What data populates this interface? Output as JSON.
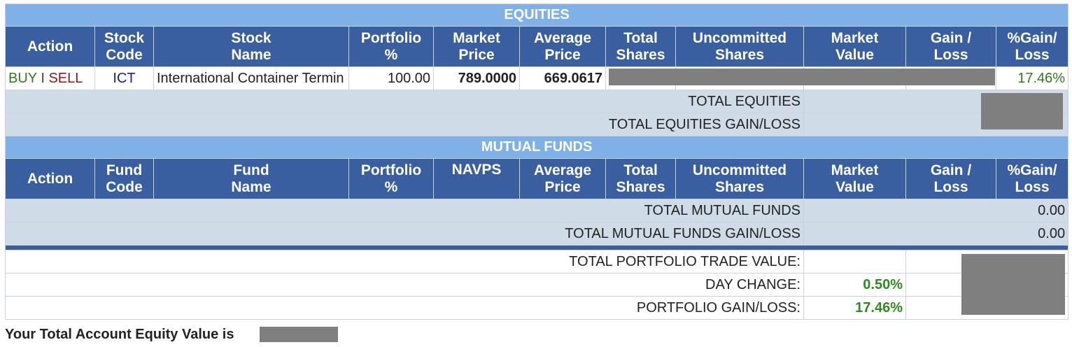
{
  "equities": {
    "section_title": "EQUITIES",
    "columns": [
      [
        "Action"
      ],
      [
        "Stock",
        "Code"
      ],
      [
        "Stock",
        "Name"
      ],
      [
        "Portfolio",
        "%"
      ],
      [
        "Market",
        "Price"
      ],
      [
        "Average",
        "Price"
      ],
      [
        "Total",
        "Shares"
      ],
      [
        "Uncommitted",
        "Shares"
      ],
      [
        "Market",
        "Value"
      ],
      [
        "Gain /",
        "Loss"
      ],
      [
        "%Gain/",
        "Loss"
      ]
    ],
    "row": {
      "buy": "BUY",
      "sep": "I",
      "sell": "SELL",
      "code": "ICT",
      "name": "International Container Termin",
      "portfolio_pct": "100.00",
      "market_price": "789.0000",
      "average_price": "669.0617",
      "pct_gain_loss": "17.46%"
    },
    "total_label": "TOTAL EQUITIES",
    "total_gain_label": "TOTAL EQUITIES GAIN/LOSS"
  },
  "mutual_funds": {
    "section_title": "MUTUAL FUNDS",
    "columns": [
      [
        "Action"
      ],
      [
        "Fund",
        "Code"
      ],
      [
        "Fund",
        "Name"
      ],
      [
        "Portfolio",
        "%"
      ],
      [
        "NAVPS"
      ],
      [
        "Average",
        "Price"
      ],
      [
        "Total",
        "Shares"
      ],
      [
        "Uncommitted",
        "Shares"
      ],
      [
        "Market",
        "Value"
      ],
      [
        "Gain /",
        "Loss"
      ],
      [
        "%Gain/",
        "Loss"
      ]
    ],
    "total_label": "TOTAL MUTUAL FUNDS",
    "total_value": "0.00",
    "total_gain_label": "TOTAL MUTUAL FUNDS GAIN/LOSS",
    "total_gain_value": "0.00"
  },
  "summary": {
    "trade_value_label": "TOTAL PORTFOLIO TRADE VALUE:",
    "day_change_label": "DAY CHANGE:",
    "day_change_value": "0.50%",
    "gain_loss_label": "PORTFOLIO GAIN/LOSS:",
    "gain_loss_value": "17.46%"
  },
  "footer_text": "Your Total Account Equity Value is",
  "colors": {
    "section_header": "#7fb1e8",
    "column_header": "#3a5fa0",
    "total_row": "#cfdbe7",
    "positive": "#2e7d1c",
    "sell": "#8b1a1a",
    "redaction": "#7f7f7f"
  }
}
